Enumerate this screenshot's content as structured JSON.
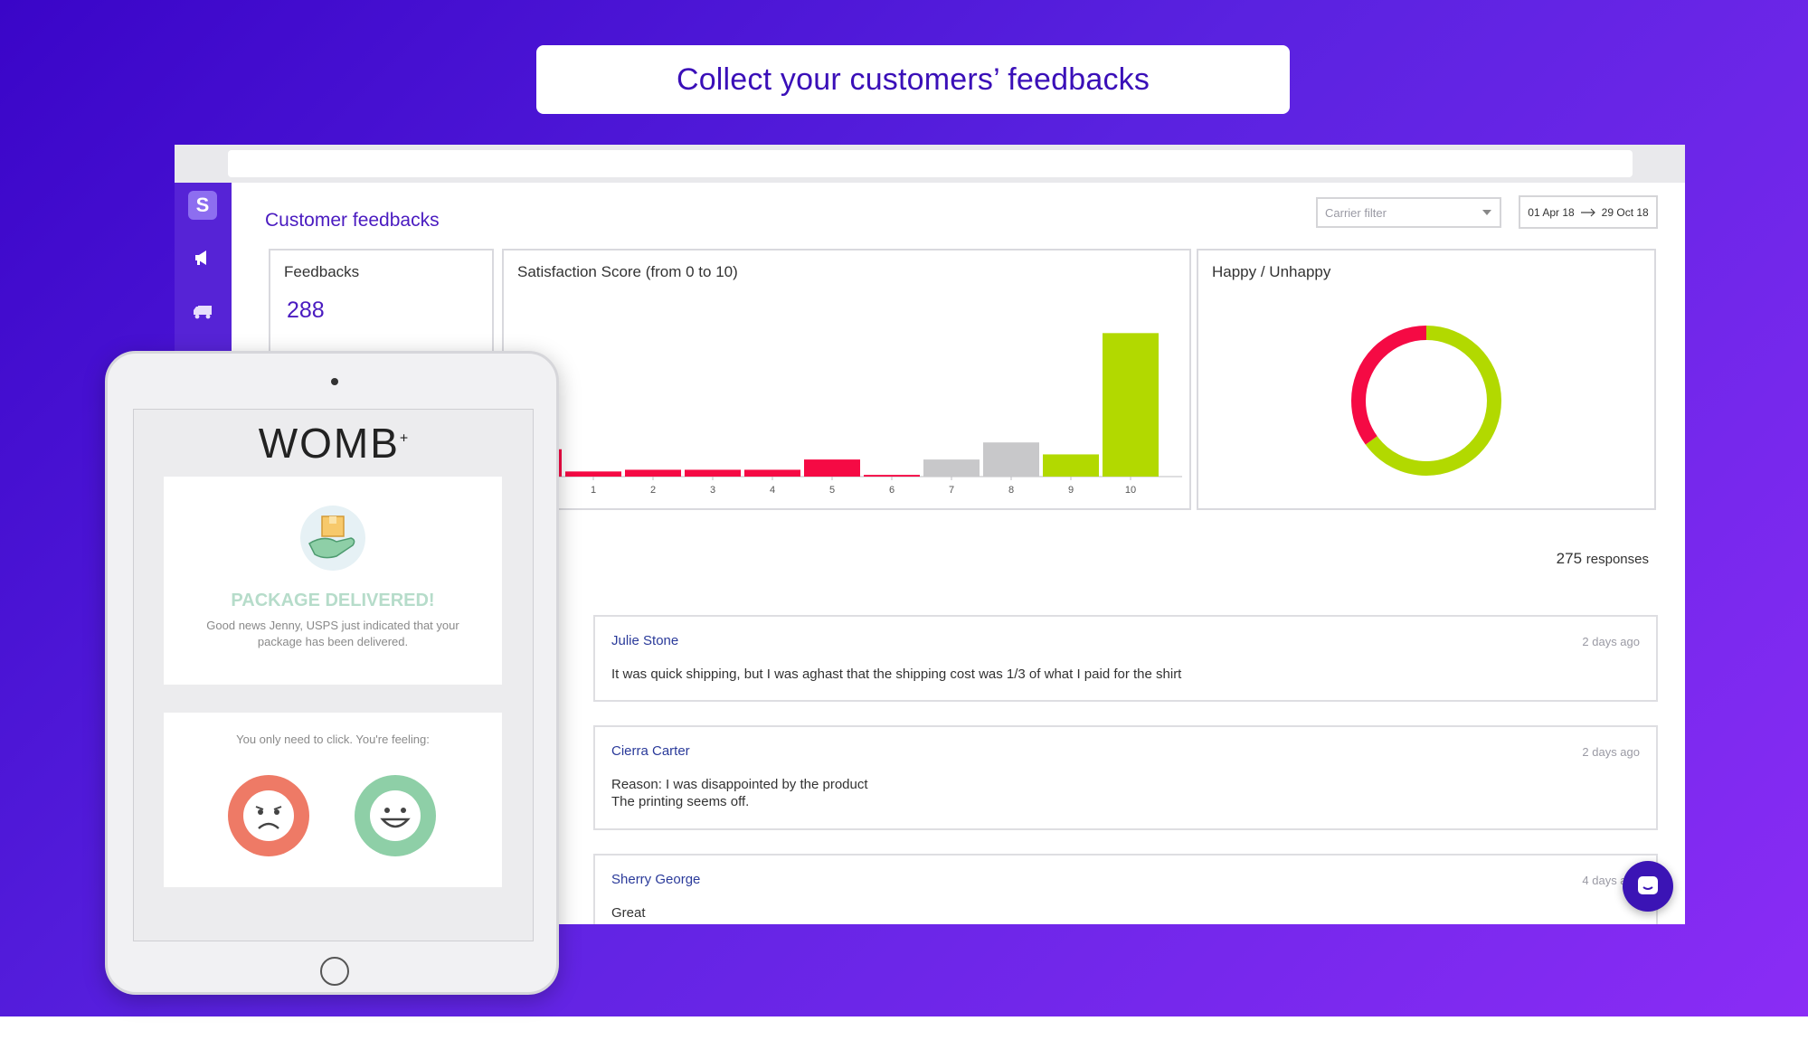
{
  "headline": "Collect your customers’ feedbacks",
  "page": {
    "title": "Customer feedbacks",
    "carrier_filter_placeholder": "Carrier filter",
    "date_from": "01 Apr 18",
    "date_to": "29 Oct 18"
  },
  "sidebar": {
    "logo_glyph": "S",
    "icons": [
      "megaphone-icon",
      "truck-icon"
    ]
  },
  "cards": {
    "feedbacks_title": "Feedbacks",
    "feedbacks_value": "288",
    "score_title": "Satisfaction Score (from 0 to 10)",
    "happy_title": "Happy / Unhappy"
  },
  "responses": {
    "count": "275",
    "label": "responses"
  },
  "feedbacks": [
    {
      "name": "Julie Stone",
      "time": "2 days ago",
      "text": "It was quick shipping, but I was aghast that the shipping cost was 1/3 of what I paid for the shirt"
    },
    {
      "name": "Cierra Carter",
      "time": "2 days ago",
      "text": "Reason: I was disappointed by the product\nThe printing seems off."
    },
    {
      "name": "Sherry George",
      "time": "4 days ago",
      "text": "Great"
    }
  ],
  "tablet": {
    "brand": "WOMB",
    "brand_mark": "+",
    "delivered_title": "PACKAGE DELIVERED!",
    "delivered_text": "Good news Jenny, USPS just indicated that your package has been delivered.",
    "feeling_prompt": "You only need to click. You're feeling:"
  },
  "colors": {
    "unhappy": "#f50a44",
    "neutral": "#c8c8ca",
    "happy": "#b2d900",
    "accent": "#4a1bc0"
  },
  "chart_data": [
    {
      "type": "bar",
      "title": "Satisfaction Score (from 0 to 10)",
      "categories": [
        "0",
        "1",
        "2",
        "3",
        "4",
        "5",
        "6",
        "7",
        "8",
        "9",
        "10"
      ],
      "values": [
        16,
        3,
        4,
        4,
        4,
        10,
        1,
        10,
        20,
        13,
        84
      ],
      "visible_tick_labels": [
        "1",
        "2",
        "3",
        "4",
        "5",
        "6",
        "7",
        "8",
        "9",
        "10"
      ],
      "ylim": [
        0,
        90
      ],
      "bar_colors": [
        "#f50a44",
        "#f50a44",
        "#f50a44",
        "#f50a44",
        "#f50a44",
        "#f50a44",
        "#f50a44",
        "#c8c8ca",
        "#c8c8ca",
        "#b2d900",
        "#b2d900"
      ]
    },
    {
      "type": "pie",
      "title": "Happy / Unhappy",
      "donut": true,
      "slices": [
        {
          "value": 35,
          "color": "#f50a44"
        },
        {
          "value": 65,
          "color": "#b2d900"
        }
      ]
    }
  ]
}
